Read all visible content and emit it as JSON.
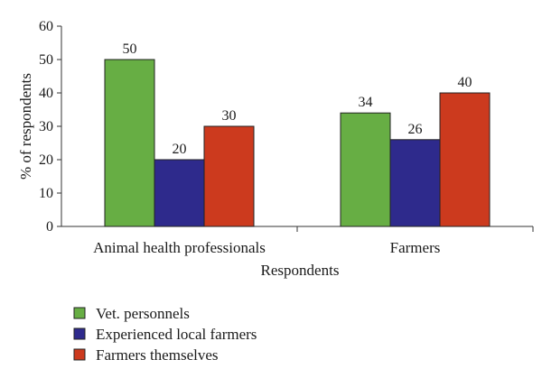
{
  "chart_data": {
    "type": "bar",
    "categories": [
      "Animal health professionals",
      "Farmers"
    ],
    "series": [
      {
        "name": "Vet. personnels",
        "values": [
          50,
          34
        ],
        "color": "#67ae44"
      },
      {
        "name": "Experienced local farmers",
        "values": [
          20,
          26
        ],
        "color": "#2e2a8c"
      },
      {
        "name": "Farmers themselves",
        "values": [
          30,
          40
        ],
        "color": "#cc3a1e"
      }
    ],
    "title": "",
    "xlabel": "Respondents",
    "ylabel": "% of respondents",
    "ylim": [
      0,
      60
    ],
    "yticks": [
      0,
      10,
      20,
      30,
      40,
      50,
      60
    ],
    "grid": false,
    "legend": "bottom-left",
    "data_labels": true
  }
}
